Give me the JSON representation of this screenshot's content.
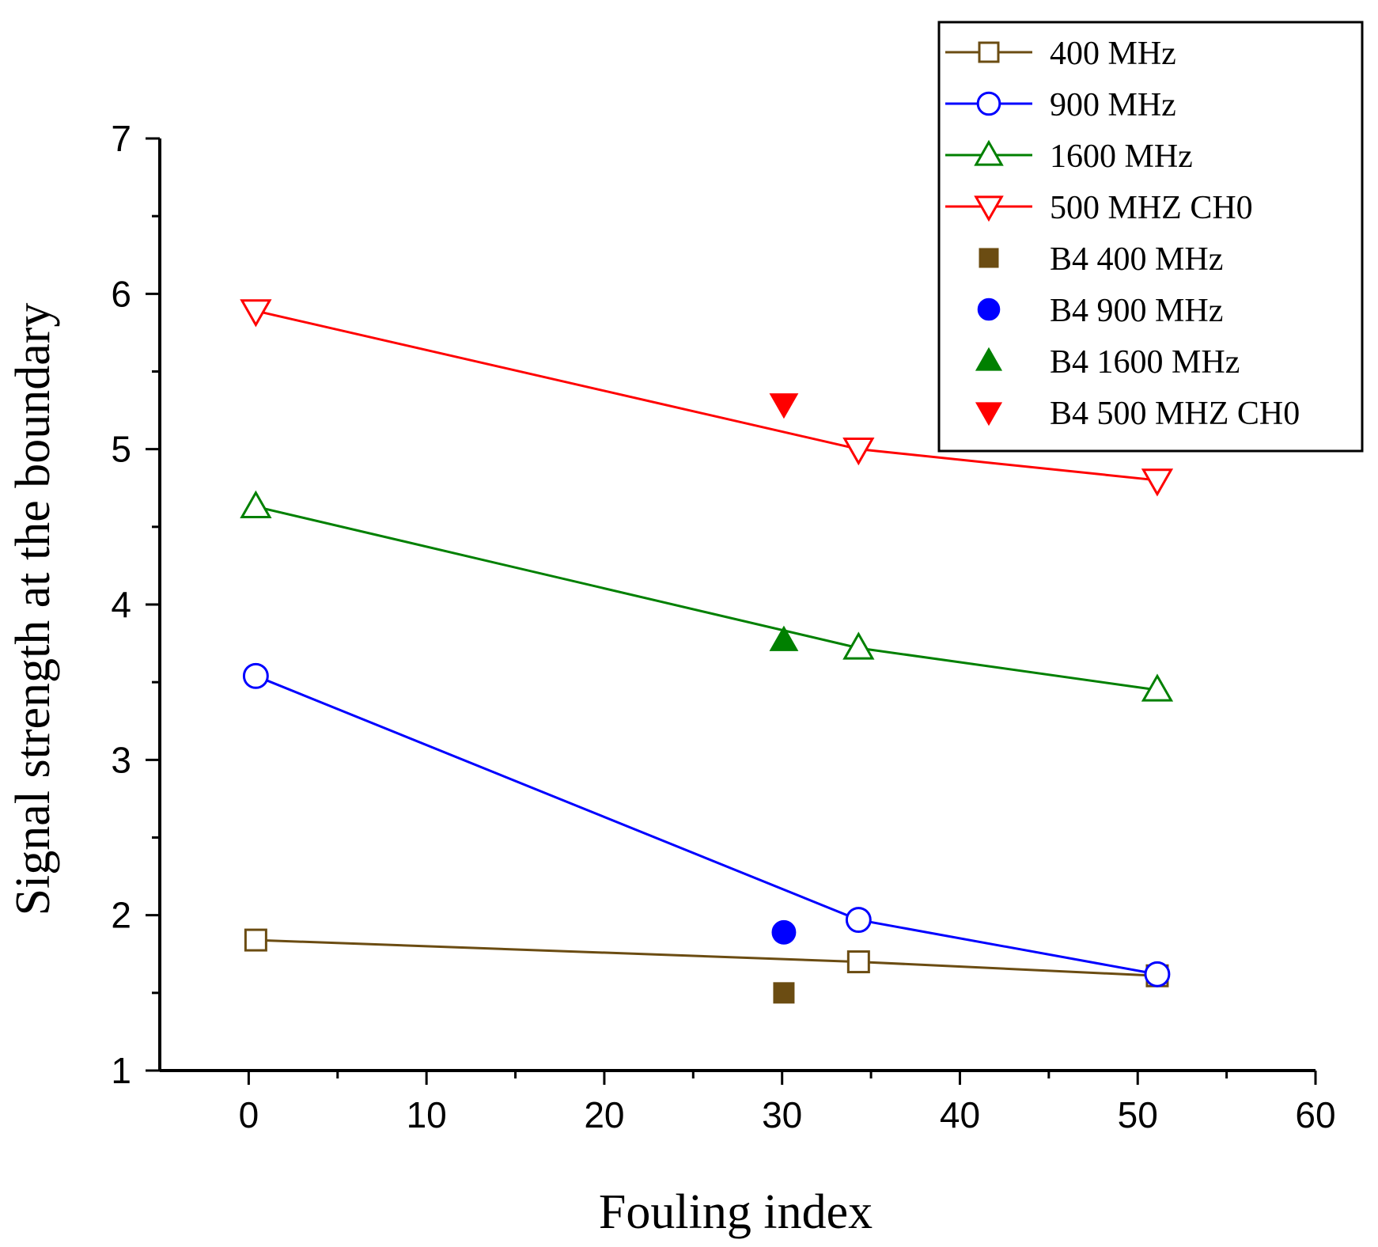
{
  "chart_data": {
    "type": "scatter",
    "title": "",
    "xlabel": "Fouling index",
    "ylabel": "Signal strength at the boundary",
    "xlim": [
      -5,
      60
    ],
    "ylim": [
      1,
      7
    ],
    "xticks": [
      "0",
      "10",
      "20",
      "30",
      "40",
      "50",
      "60"
    ],
    "yticks": [
      "1",
      "2",
      "3",
      "4",
      "5",
      "6",
      "7"
    ],
    "legend_position": "top-right",
    "series": [
      {
        "name": "400 MHz",
        "color": "#6b4c12",
        "marker": "square",
        "filled": false,
        "line": true,
        "x": [
          0.4,
          34.3,
          51.1
        ],
        "y": [
          1.84,
          1.7,
          1.61
        ]
      },
      {
        "name": "900 MHz",
        "color": "#0000ff",
        "marker": "circle",
        "filled": false,
        "line": true,
        "x": [
          0.4,
          34.3,
          51.1
        ],
        "y": [
          3.54,
          1.97,
          1.62
        ]
      },
      {
        "name": "1600 MHz",
        "color": "#008000",
        "marker": "triangle-up",
        "filled": false,
        "line": true,
        "x": [
          0.4,
          34.3,
          51.1
        ],
        "y": [
          4.63,
          3.72,
          3.45
        ]
      },
      {
        "name": "500 MHZ CH0",
        "color": "#ff0000",
        "marker": "triangle-down",
        "filled": false,
        "line": true,
        "x": [
          0.4,
          34.3,
          51.1
        ],
        "y": [
          5.89,
          5.0,
          4.8
        ]
      },
      {
        "name": "B4 400 MHz",
        "color": "#6b4c12",
        "marker": "square",
        "filled": true,
        "line": false,
        "x": [
          30.1
        ],
        "y": [
          1.5
        ]
      },
      {
        "name": "B4 900 MHz",
        "color": "#0000ff",
        "marker": "circle",
        "filled": true,
        "line": false,
        "x": [
          30.1
        ],
        "y": [
          1.89
        ]
      },
      {
        "name": "B4 1600 MHz",
        "color": "#008000",
        "marker": "triangle-up",
        "filled": true,
        "line": false,
        "x": [
          30.1
        ],
        "y": [
          3.77
        ]
      },
      {
        "name": "B4 500 MHZ CH0",
        "color": "#ff0000",
        "marker": "triangle-down",
        "filled": true,
        "line": false,
        "x": [
          30.1
        ],
        "y": [
          5.29
        ]
      }
    ]
  }
}
